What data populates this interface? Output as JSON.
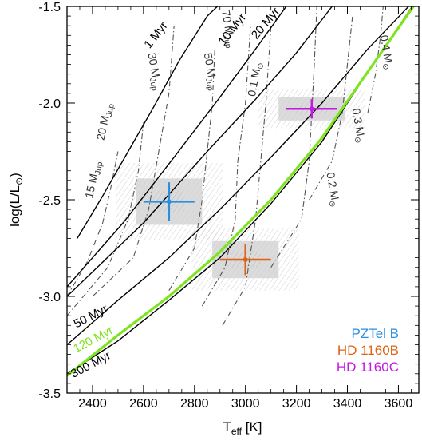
{
  "chart_data": {
    "type": "line",
    "xlabel_main": "T",
    "xlabel_sub": "eff",
    "xlabel_unit": " [K]",
    "ylabel": "log(L/L",
    "ylabel_end": ")",
    "xlim": [
      2300,
      3680
    ],
    "ylim": [
      -3.5,
      -1.5
    ],
    "xticks": [
      2400,
      2600,
      2800,
      3000,
      3200,
      3400,
      3600
    ],
    "yticks": [
      -1.5,
      -2.0,
      -2.5,
      -3.0,
      -3.5
    ],
    "ytick_labels": [
      "-1.5",
      "-2.0",
      "-2.5",
      "-3.0",
      "-3.5"
    ],
    "isochrones": [
      {
        "label": "1 Myr",
        "points": [
          [
            2340,
            -2.7
          ],
          [
            2440,
            -2.48
          ],
          [
            2540,
            -2.25
          ],
          [
            2640,
            -2.02
          ],
          [
            2740,
            -1.78
          ],
          [
            2850,
            -1.55
          ],
          [
            2890,
            -1.5
          ]
        ]
      },
      {
        "label": "10 Myr",
        "points": [
          [
            2300,
            -2.95
          ],
          [
            2520,
            -2.62
          ],
          [
            2720,
            -2.28
          ],
          [
            2900,
            -1.97
          ],
          [
            3040,
            -1.72
          ],
          [
            3160,
            -1.5
          ]
        ]
      },
      {
        "label": "20 Myr",
        "points": [
          [
            2300,
            -3.0
          ],
          [
            2600,
            -2.62
          ],
          [
            2850,
            -2.25
          ],
          [
            3040,
            -1.98
          ],
          [
            3200,
            -1.74
          ],
          [
            3340,
            -1.5
          ]
        ]
      },
      {
        "label": "50 Myr",
        "points": [
          [
            2300,
            -3.25
          ],
          [
            2500,
            -3.02
          ],
          [
            2700,
            -2.8
          ],
          [
            2900,
            -2.55
          ],
          [
            3100,
            -2.28
          ],
          [
            3300,
            -2.0
          ],
          [
            3480,
            -1.72
          ],
          [
            3640,
            -1.5
          ]
        ]
      },
      {
        "label": "300 Myr",
        "points": [
          [
            2300,
            -3.4
          ],
          [
            2500,
            -3.23
          ],
          [
            2700,
            -3.02
          ],
          [
            2900,
            -2.8
          ],
          [
            3100,
            -2.52
          ],
          [
            3300,
            -2.2
          ],
          [
            3500,
            -1.8
          ],
          [
            3680,
            -1.45
          ]
        ]
      }
    ],
    "highlight_isochrone": {
      "label": "120 Myr",
      "color": "#7ee41f",
      "points": [
        [
          2300,
          -3.41
        ],
        [
          2500,
          -3.2
        ],
        [
          2700,
          -3.0
        ],
        [
          2900,
          -2.77
        ],
        [
          3100,
          -2.5
        ],
        [
          3300,
          -2.18
        ],
        [
          3500,
          -1.8
        ],
        [
          3680,
          -1.46
        ]
      ]
    },
    "mass_tracks": [
      {
        "label": "15 M",
        "sub": "Jup",
        "points": [
          [
            2300,
            -3.0
          ],
          [
            2380,
            -2.82
          ],
          [
            2440,
            -2.62
          ],
          [
            2470,
            -2.45
          ],
          [
            2500,
            -2.25
          ]
        ]
      },
      {
        "label": "20 M",
        "sub": "Jup",
        "points": [
          [
            2300,
            -3.1
          ],
          [
            2460,
            -2.85
          ],
          [
            2540,
            -2.6
          ],
          [
            2580,
            -2.35
          ],
          [
            2600,
            -2.1
          ]
        ]
      },
      {
        "label": "30 M",
        "sub": "Jup",
        "points": [
          [
            2400,
            -3.0
          ],
          [
            2560,
            -2.8
          ],
          [
            2620,
            -2.55
          ],
          [
            2660,
            -2.25
          ],
          [
            2700,
            -1.95
          ],
          [
            2720,
            -1.6
          ]
        ]
      },
      {
        "label": "50 M",
        "sub": "Jup",
        "points": [
          [
            2700,
            -2.97
          ],
          [
            2800,
            -2.75
          ],
          [
            2830,
            -2.5
          ],
          [
            2850,
            -2.25
          ],
          [
            2870,
            -2.0
          ],
          [
            2880,
            -1.72
          ]
        ]
      },
      {
        "label": "70 M",
        "sub": "Jup",
        "points": [
          [
            2830,
            -3.05
          ],
          [
            2920,
            -2.85
          ],
          [
            2960,
            -2.6
          ],
          [
            2970,
            -2.3
          ],
          [
            3000,
            -2.0
          ],
          [
            3020,
            -1.6
          ]
        ]
      },
      {
        "label": "0.1 M",
        "sub": "⊙",
        "points": [
          [
            2910,
            -3.15
          ],
          [
            3000,
            -2.95
          ],
          [
            3040,
            -2.6
          ],
          [
            3060,
            -2.3
          ],
          [
            3080,
            -2.0
          ],
          [
            3100,
            -1.6
          ]
        ]
      },
      {
        "label": "0.2 M",
        "sub": "⊙",
        "points": [
          [
            3100,
            -2.85
          ],
          [
            3220,
            -2.6
          ],
          [
            3250,
            -2.3
          ],
          [
            3260,
            -2.05
          ],
          [
            3270,
            -1.8
          ],
          [
            3280,
            -1.5
          ]
        ]
      },
      {
        "label": "0.3 M",
        "sub": "⊙",
        "points": [
          [
            3250,
            -2.5
          ],
          [
            3340,
            -2.3
          ],
          [
            3380,
            -2.05
          ],
          [
            3400,
            -1.8
          ],
          [
            3420,
            -1.55
          ]
        ]
      },
      {
        "label": "0.4 M",
        "sub": "⊙",
        "points": [
          [
            3480,
            -2.05
          ],
          [
            3510,
            -1.85
          ],
          [
            3530,
            -1.65
          ],
          [
            3540,
            -1.5
          ]
        ]
      }
    ],
    "objects": [
      {
        "name": "PZTel B",
        "color": "#2b8fe0",
        "teff": 2700,
        "teff_err": 100,
        "logl": -2.51,
        "logl_err": 0.1
      },
      {
        "name": "HD 1160B",
        "color": "#e06214",
        "teff": 3000,
        "teff_err": 100,
        "logl": -2.81,
        "logl_err": 0.08
      },
      {
        "name": "HD 1160C",
        "color": "#c21ae0",
        "teff": 3260,
        "teff_err": 100,
        "logl": -2.03,
        "logl_err": 0.05
      }
    ]
  }
}
